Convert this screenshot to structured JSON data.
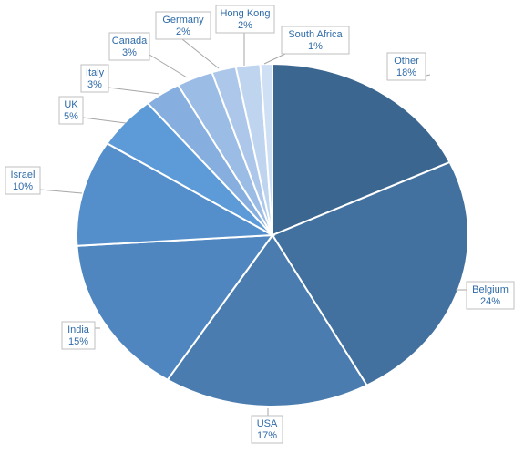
{
  "chart_data": {
    "type": "pie",
    "slices": [
      {
        "label": "Other",
        "value": 18,
        "display": "18%",
        "color": "#3b668f"
      },
      {
        "label": "Belgium",
        "value": 24,
        "display": "24%",
        "color": "#43719f"
      },
      {
        "label": "USA",
        "value": 17,
        "display": "17%",
        "color": "#4a7cb0"
      },
      {
        "label": "India",
        "value": 15,
        "display": "15%",
        "color": "#4f86bf"
      },
      {
        "label": "Israel",
        "value": 10,
        "display": "10%",
        "color": "#548ecb"
      },
      {
        "label": "UK",
        "value": 5,
        "display": "5%",
        "color": "#5c9bd8"
      },
      {
        "label": "Italy",
        "value": 3,
        "display": "3%",
        "color": "#86aedf"
      },
      {
        "label": "Canada",
        "value": 3,
        "display": "3%",
        "color": "#9bbce5"
      },
      {
        "label": "Germany",
        "value": 2,
        "display": "2%",
        "color": "#acc7ea"
      },
      {
        "label": "Hong Kong",
        "value": 2,
        "display": "2%",
        "color": "#bed4ef"
      },
      {
        "label": "South Africa",
        "value": 1,
        "display": "1%",
        "color": "#cfdff4"
      }
    ],
    "legend": "none",
    "data_labels": "outside with leader lines"
  }
}
